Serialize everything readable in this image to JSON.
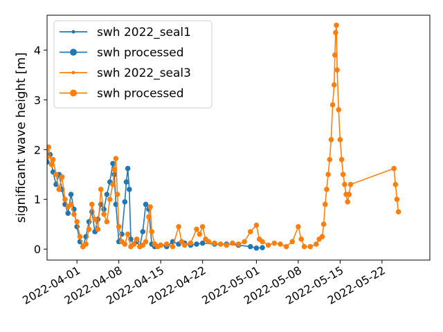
{
  "chart_data": {
    "type": "line",
    "title": "",
    "xlabel": "",
    "ylabel": "significant wave height [m]",
    "x_type": "date",
    "xlim": [
      "2022-03-27",
      "2022-05-30"
    ],
    "ylim": [
      -0.22,
      4.7
    ],
    "x_ticks": [
      "2022-04-01",
      "2022-04-08",
      "2022-04-15",
      "2022-04-22",
      "2022-05-01",
      "2022-05-08",
      "2022-05-15",
      "2022-05-22"
    ],
    "y_ticks": [
      0,
      1,
      2,
      3,
      4
    ],
    "grid": false,
    "legend_position": "top-left",
    "legend": [
      {
        "label": "swh 2022_seal1",
        "color": "#1f77b4",
        "marker": "small"
      },
      {
        "label": "swh processed",
        "color": "#1f77b4",
        "marker": "large"
      },
      {
        "label": "swh 2022_seal3",
        "color": "#ff7f0e",
        "marker": "small"
      },
      {
        "label": "swh processed",
        "color": "#ff7f0e",
        "marker": "large"
      }
    ],
    "series": [
      {
        "name": "swh 2022_seal1",
        "color": "#1f77b4",
        "marker": "small",
        "points": [
          [
            "2022-03-27",
            1.75
          ],
          [
            "2022-03-27T12:00",
            1.9
          ],
          [
            "2022-03-28",
            1.55
          ],
          [
            "2022-03-28T12:00",
            1.3
          ],
          [
            "2022-03-29",
            1.5
          ],
          [
            "2022-03-29T12:00",
            1.2
          ],
          [
            "2022-03-30",
            0.9
          ],
          [
            "2022-03-30T12:00",
            0.72
          ],
          [
            "2022-03-31",
            1.1
          ],
          [
            "2022-03-31T12:00",
            0.8
          ],
          [
            "2022-04-01",
            0.45
          ],
          [
            "2022-04-01T12:00",
            0.15
          ],
          [
            "2022-04-02",
            0.05
          ],
          [
            "2022-04-02T12:00",
            0.25
          ],
          [
            "2022-04-03",
            0.55
          ],
          [
            "2022-04-03T12:00",
            0.75
          ],
          [
            "2022-04-04",
            0.35
          ],
          [
            "2022-04-04T12:00",
            0.6
          ],
          [
            "2022-04-05",
            0.9
          ],
          [
            "2022-04-05T12:00",
            0.8
          ],
          [
            "2022-04-06",
            1.1
          ],
          [
            "2022-04-06T12:00",
            1.35
          ],
          [
            "2022-04-07",
            1.72
          ],
          [
            "2022-04-07T06:00",
            1.5
          ],
          [
            "2022-04-07T12:00",
            0.9
          ],
          [
            "2022-04-08",
            0.15
          ],
          [
            "2022-04-08T12:00",
            0.3
          ],
          [
            "2022-04-09",
            0.95
          ],
          [
            "2022-04-09T06:00",
            1.35
          ],
          [
            "2022-04-09T12:00",
            1.62
          ],
          [
            "2022-04-09T18:00",
            1.2
          ],
          [
            "2022-04-10",
            0.2
          ],
          [
            "2022-04-10T12:00",
            0.1
          ],
          [
            "2022-04-11",
            0.15
          ],
          [
            "2022-04-11T12:00",
            0.05
          ],
          [
            "2022-04-12",
            0.35
          ],
          [
            "2022-04-12T12:00",
            0.9
          ],
          [
            "2022-04-13",
            0.8
          ],
          [
            "2022-04-13T12:00",
            0.1
          ],
          [
            "2022-04-14",
            0.05
          ],
          [
            "2022-04-15",
            0.08
          ],
          [
            "2022-04-16",
            0.05
          ],
          [
            "2022-04-17",
            0.15
          ],
          [
            "2022-04-18",
            0.1
          ],
          [
            "2022-04-19",
            0.12
          ],
          [
            "2022-04-20",
            0.08
          ],
          [
            "2022-04-21",
            0.1
          ],
          [
            "2022-04-22",
            0.12
          ],
          [
            "2022-04-24",
            0.1
          ],
          [
            "2022-04-26",
            0.1
          ],
          [
            "2022-04-28",
            0.08
          ],
          [
            "2022-04-30",
            0.05
          ],
          [
            "2022-05-01",
            0.02
          ],
          [
            "2022-05-02",
            0.03
          ]
        ]
      },
      {
        "name": "swh 2022_seal3",
        "color": "#ff7f0e",
        "marker": "small",
        "points": [
          [
            "2022-03-27",
            1.85
          ],
          [
            "2022-03-27T06:00",
            2.05
          ],
          [
            "2022-03-27T18:00",
            1.7
          ],
          [
            "2022-03-28",
            1.8
          ],
          [
            "2022-03-28T12:00",
            1.5
          ],
          [
            "2022-03-29",
            1.2
          ],
          [
            "2022-03-29T12:00",
            1.45
          ],
          [
            "2022-03-30",
            1.0
          ],
          [
            "2022-03-30T12:00",
            0.85
          ],
          [
            "2022-03-31",
            0.9
          ],
          [
            "2022-03-31T12:00",
            0.7
          ],
          [
            "2022-04-01",
            0.55
          ],
          [
            "2022-04-01T12:00",
            0.25
          ],
          [
            "2022-04-02",
            0.05
          ],
          [
            "2022-04-02T12:00",
            0.1
          ],
          [
            "2022-04-03",
            0.4
          ],
          [
            "2022-04-03T12:00",
            0.9
          ],
          [
            "2022-04-04",
            0.6
          ],
          [
            "2022-04-04T12:00",
            0.4
          ],
          [
            "2022-04-05",
            1.2
          ],
          [
            "2022-04-05T12:00",
            0.7
          ],
          [
            "2022-04-06",
            0.55
          ],
          [
            "2022-04-06T12:00",
            1.0
          ],
          [
            "2022-04-07",
            1.3
          ],
          [
            "2022-04-07T06:00",
            1.6
          ],
          [
            "2022-04-07T12:00",
            1.82
          ],
          [
            "2022-04-07T18:00",
            1.1
          ],
          [
            "2022-04-08",
            0.45
          ],
          [
            "2022-04-08T12:00",
            0.15
          ],
          [
            "2022-04-09",
            0.1
          ],
          [
            "2022-04-09T12:00",
            0.3
          ],
          [
            "2022-04-10",
            0.05
          ],
          [
            "2022-04-10T12:00",
            0.1
          ],
          [
            "2022-04-11",
            0.2
          ],
          [
            "2022-04-11T12:00",
            0.05
          ],
          [
            "2022-04-12",
            0.08
          ],
          [
            "2022-04-12T12:00",
            0.15
          ],
          [
            "2022-04-13",
            0.65
          ],
          [
            "2022-04-13T06:00",
            0.85
          ],
          [
            "2022-04-13T12:00",
            0.35
          ],
          [
            "2022-04-14",
            0.1
          ],
          [
            "2022-04-14T12:00",
            0.05
          ],
          [
            "2022-04-15",
            0.08
          ],
          [
            "2022-04-16",
            0.1
          ],
          [
            "2022-04-17",
            0.05
          ],
          [
            "2022-04-18",
            0.45
          ],
          [
            "2022-04-18T12:00",
            0.15
          ],
          [
            "2022-04-19",
            0.08
          ],
          [
            "2022-04-20",
            0.12
          ],
          [
            "2022-04-21",
            0.4
          ],
          [
            "2022-04-21T12:00",
            0.3
          ],
          [
            "2022-04-22",
            0.45
          ],
          [
            "2022-04-22T12:00",
            0.2
          ],
          [
            "2022-04-23",
            0.15
          ],
          [
            "2022-04-24",
            0.12
          ],
          [
            "2022-04-25",
            0.1
          ],
          [
            "2022-04-26",
            0.08
          ],
          [
            "2022-04-27",
            0.12
          ],
          [
            "2022-04-28",
            0.1
          ],
          [
            "2022-04-29",
            0.15
          ],
          [
            "2022-04-30",
            0.35
          ],
          [
            "2022-05-01",
            0.48
          ],
          [
            "2022-05-01T12:00",
            0.2
          ],
          [
            "2022-05-02",
            0.15
          ],
          [
            "2022-05-03",
            0.08
          ],
          [
            "2022-05-04",
            0.12
          ],
          [
            "2022-05-05",
            0.1
          ],
          [
            "2022-05-06",
            0.05
          ],
          [
            "2022-05-07",
            0.15
          ],
          [
            "2022-05-08",
            0.45
          ],
          [
            "2022-05-08T12:00",
            0.2
          ],
          [
            "2022-05-09",
            0.05
          ],
          [
            "2022-05-10",
            0.05
          ],
          [
            "2022-05-11",
            0.1
          ],
          [
            "2022-05-11T12:00",
            0.2
          ],
          [
            "2022-05-12",
            0.25
          ],
          [
            "2022-05-12T06:00",
            0.5
          ],
          [
            "2022-05-12T12:00",
            0.9
          ],
          [
            "2022-05-12T18:00",
            1.2
          ],
          [
            "2022-05-13",
            1.5
          ],
          [
            "2022-05-13T06:00",
            1.8
          ],
          [
            "2022-05-13T12:00",
            2.2
          ],
          [
            "2022-05-13T18:00",
            2.9
          ],
          [
            "2022-05-14",
            3.3
          ],
          [
            "2022-05-14T03:00",
            3.9
          ],
          [
            "2022-05-14T06:00",
            4.35
          ],
          [
            "2022-05-14T09:00",
            4.5
          ],
          [
            "2022-05-14T12:00",
            3.6
          ],
          [
            "2022-05-14T18:00",
            2.8
          ],
          [
            "2022-05-15",
            2.2
          ],
          [
            "2022-05-15T06:00",
            1.8
          ],
          [
            "2022-05-15T12:00",
            1.5
          ],
          [
            "2022-05-15T18:00",
            1.3
          ],
          [
            "2022-05-16",
            1.1
          ],
          [
            "2022-05-16T06:00",
            0.95
          ],
          [
            "2022-05-16T12:00",
            1.1
          ],
          [
            "2022-05-16T18:00",
            1.3
          ],
          [
            "2022-05-24",
            1.62
          ],
          [
            "2022-05-24T06:00",
            1.3
          ],
          [
            "2022-05-24T12:00",
            1.0
          ],
          [
            "2022-05-24T18:00",
            0.75
          ]
        ]
      }
    ],
    "processed_series": [
      {
        "name": "swh processed",
        "color": "#1f77b4",
        "marker": "large",
        "source": "swh 2022_seal1"
      },
      {
        "name": "swh processed",
        "color": "#ff7f0e",
        "marker": "large",
        "source": "swh 2022_seal3"
      }
    ]
  }
}
